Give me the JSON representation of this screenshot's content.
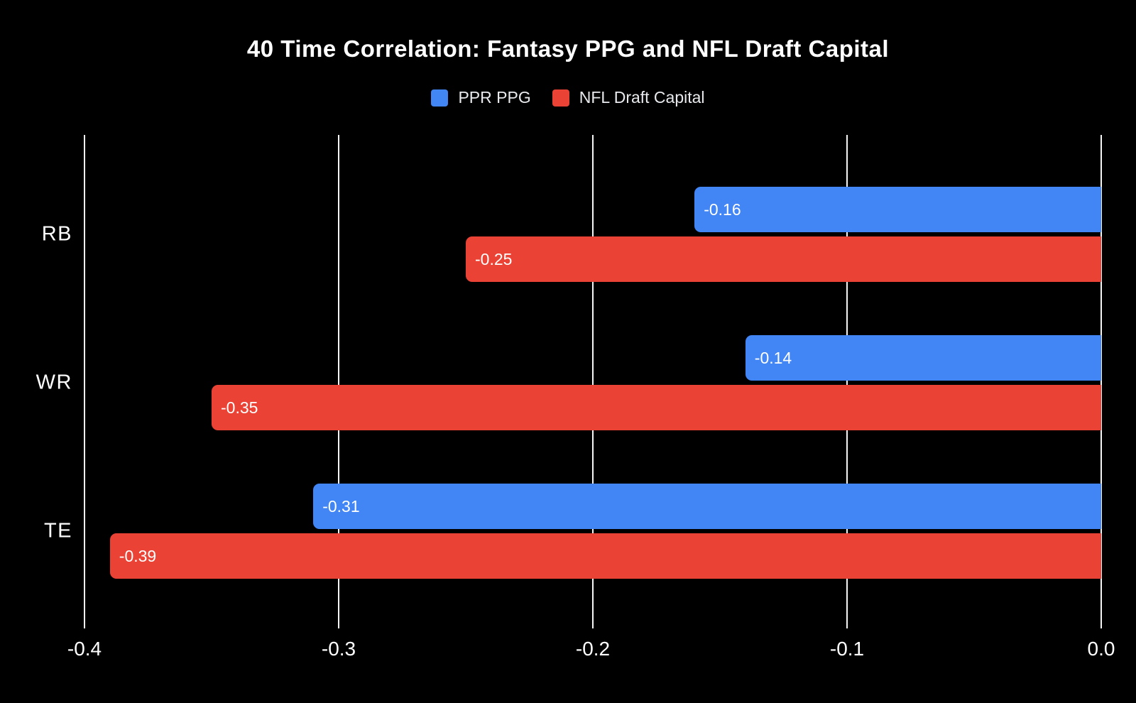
{
  "title": "40 Time Correlation: Fantasy PPG and NFL Draft Capital",
  "colors": {
    "background": "#000000",
    "text": "#ffffff",
    "legend_text": "#e8eaed",
    "grid": "#f5f5f5",
    "blue": "#4285f4",
    "red": "#ea4335"
  },
  "chart_data": {
    "type": "bar",
    "orientation": "horizontal",
    "title": "40 Time Correlation: Fantasy PPG and NFL Draft Capital",
    "categories": [
      "RB",
      "WR",
      "TE"
    ],
    "series": [
      {
        "name": "PPR PPG",
        "color": "#4285f4",
        "values": [
          -0.16,
          -0.14,
          -0.31
        ],
        "labels": [
          "-0.16",
          "-0.14",
          "-0.31"
        ]
      },
      {
        "name": "NFL Draft Capital",
        "color": "#ea4335",
        "values": [
          -0.25,
          -0.35,
          -0.39
        ],
        "labels": [
          "-0.25",
          "-0.35",
          "-0.39"
        ]
      }
    ],
    "xlim": [
      -0.4,
      0
    ],
    "x_ticks": [
      {
        "value": -0.4,
        "label": "-0.4"
      },
      {
        "value": -0.3,
        "label": "-0.3"
      },
      {
        "value": -0.2,
        "label": "-0.2"
      },
      {
        "value": -0.1,
        "label": "-0.1"
      },
      {
        "value": 0,
        "label": "0.0"
      }
    ],
    "grid": true,
    "legend_position": "top",
    "value_labels_inside": true
  }
}
